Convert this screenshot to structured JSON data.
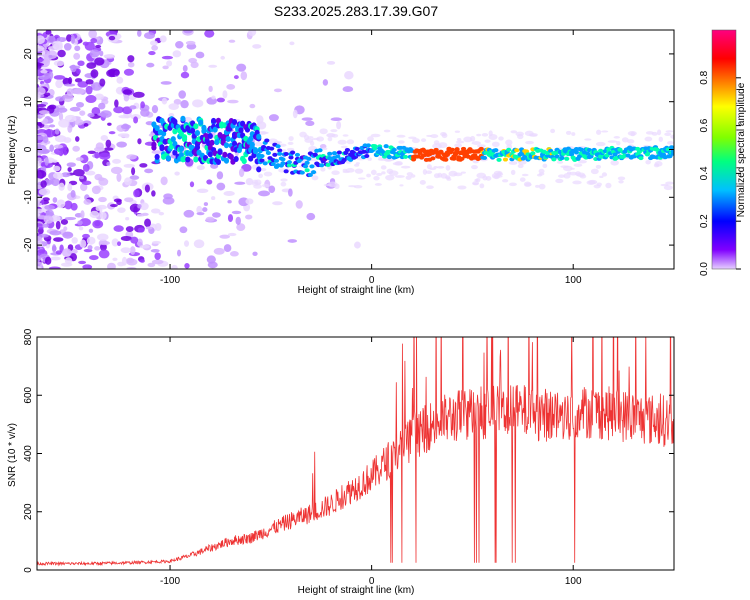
{
  "title": "S233.2025.283.17.39.G07",
  "chart_data": [
    {
      "type": "heatmap",
      "xlabel": "Height of straight line (km)",
      "ylabel": "Frequency (Hz)",
      "xlim": [
        -166,
        150
      ],
      "ylim": [
        -25,
        25
      ],
      "xticks": [
        -100,
        0,
        100
      ],
      "yticks": [
        -20,
        -10,
        0,
        10,
        20
      ],
      "colorbar": {
        "label": "Normalized spectral amplitude",
        "range": [
          0,
          1
        ],
        "ticks": [
          "0.0",
          "0.2",
          "0.4",
          "0.6",
          "0.8"
        ],
        "colors": [
          "#e6d0ff",
          "#8000ff",
          "#0000ff",
          "#00c0ff",
          "#00ff80",
          "#80ff00",
          "#ffff00",
          "#ff8000",
          "#ff0000",
          "#ff0080"
        ]
      },
      "ridge": {
        "description": "dominant frequency vs height",
        "x": [
          -100,
          -80,
          -60,
          -50,
          -40,
          -30,
          -20,
          0,
          20,
          55,
          80,
          100,
          150
        ],
        "y": [
          2,
          2,
          1,
          -1,
          -3,
          -3,
          -2,
          0,
          -1,
          -1,
          -1,
          -1,
          -0.5
        ]
      }
    },
    {
      "type": "line",
      "xlabel": "Height of straight line (km)",
      "ylabel": "SNR (10 * v/v)",
      "xlim": [
        -166,
        150
      ],
      "ylim": [
        0,
        800
      ],
      "xticks": [
        -100,
        0,
        100
      ],
      "yticks": [
        0,
        200,
        400,
        600,
        800
      ],
      "color": "#ee3333",
      "series": {
        "name": "SNR",
        "x": [
          -166,
          -140,
          -120,
          -100,
          -90,
          -80,
          -70,
          -60,
          -50,
          -40,
          -30,
          -20,
          -10,
          0,
          10,
          20,
          30,
          40,
          50,
          60,
          70,
          80,
          90,
          100,
          110,
          120,
          130,
          140,
          150
        ],
        "y": [
          22,
          22,
          25,
          30,
          50,
          75,
          100,
          110,
          140,
          170,
          195,
          225,
          275,
          320,
          390,
          450,
          500,
          525,
          540,
          545,
          545,
          540,
          530,
          540,
          545,
          535,
          525,
          515,
          510
        ]
      }
    }
  ]
}
